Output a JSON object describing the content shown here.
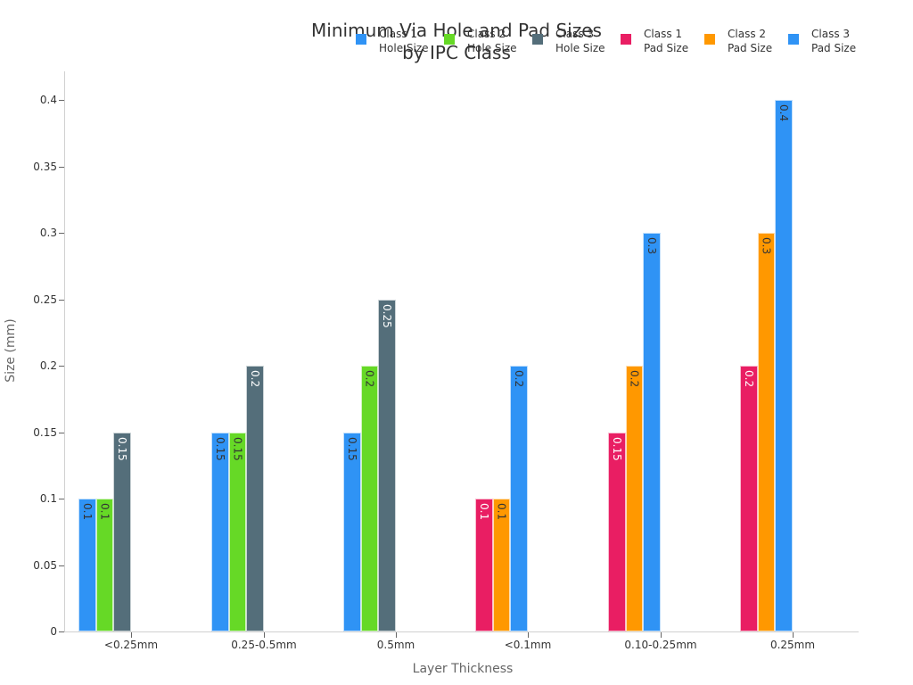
{
  "chart_data": {
    "type": "bar",
    "title": "Minimum Via Hole and Pad Sizes by IPC Class",
    "title_lines": [
      "Minimum Via Hole and Pad Sizes",
      "by IPC Class"
    ],
    "xlabel": "Layer Thickness",
    "ylabel": "Size (mm)",
    "ylim": [
      0,
      0.42
    ],
    "yticks": [
      "0",
      "0.05",
      "0.1",
      "0.15",
      "0.2",
      "0.25",
      "0.3",
      "0.35",
      "0.4"
    ],
    "categories": [
      "<0.25mm",
      "0.25-0.5mm",
      "0.5mm",
      "<0.1mm",
      "0.10-0.25mm",
      "0.25mm"
    ],
    "legend_position": "top-right",
    "grid": false,
    "series": [
      {
        "name": "Class 1 Hole Size",
        "color": "#2f93f5",
        "label_color": "#333333",
        "values": [
          0.1,
          0.15,
          0.15,
          null,
          null,
          null
        ]
      },
      {
        "name": "Class 2 Hole Size",
        "color": "#66d926",
        "label_color": "#333333",
        "values": [
          0.1,
          0.15,
          0.2,
          null,
          null,
          null
        ]
      },
      {
        "name": "Class 3 Hole Size",
        "color": "#546e7a",
        "label_color": "#ffffff",
        "values": [
          0.15,
          0.2,
          0.25,
          null,
          null,
          null
        ]
      },
      {
        "name": "Class 1 Pad Size",
        "color": "#e91e63",
        "label_color": "#ffffff",
        "values": [
          null,
          null,
          null,
          0.1,
          0.15,
          0.2
        ]
      },
      {
        "name": "Class 2 Pad Size",
        "color": "#ff9800",
        "label_color": "#333333",
        "values": [
          null,
          null,
          null,
          0.1,
          0.2,
          0.3
        ]
      },
      {
        "name": "Class 3 Pad Size",
        "color": "#2f93f5",
        "label_color": "#333333",
        "values": [
          null,
          null,
          null,
          0.2,
          0.3,
          0.4
        ]
      }
    ]
  },
  "legend": [
    {
      "line1": "Class 1",
      "line2": "Hole Size"
    },
    {
      "line1": "Class 2",
      "line2": "Hole Size"
    },
    {
      "line1": "Class 3",
      "line2": "Hole Size"
    },
    {
      "line1": "Class 1",
      "line2": "Pad Size"
    },
    {
      "line1": "Class 2",
      "line2": "Pad Size"
    },
    {
      "line1": "Class 3",
      "line2": "Pad Size"
    }
  ]
}
